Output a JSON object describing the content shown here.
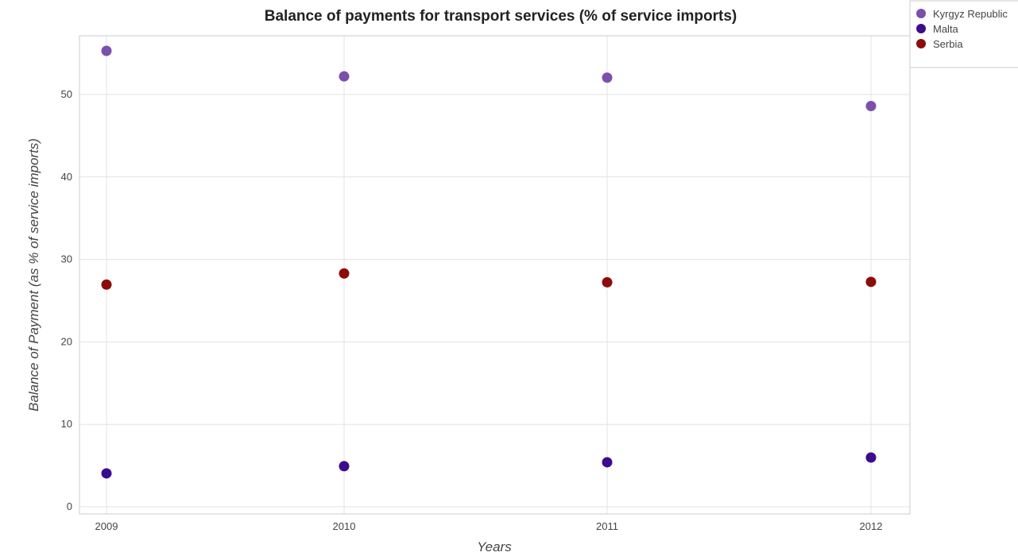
{
  "chart_data": {
    "type": "scatter",
    "title": "Balance of payments for transport services (% of service imports)",
    "xlabel": "Years",
    "ylabel": "Balance of Payment (as % of service imports)",
    "categories": [
      "2009",
      "2010",
      "2011",
      "2012"
    ],
    "yticks": [
      "0",
      "10",
      "20",
      "30",
      "40",
      "50"
    ],
    "ylim": [
      0,
      58
    ],
    "grid": true,
    "legend_position": "top-right",
    "series": [
      {
        "name": "Kyrgyz Republic",
        "color": "#7b4fad",
        "values": [
          55.3,
          52.2,
          52.05,
          48.6
        ]
      },
      {
        "name": "Malta",
        "color": "#3b0c8c",
        "values": [
          4.05,
          4.92,
          5.4,
          5.97
        ]
      },
      {
        "name": "Serbia",
        "color": "#8c0c0c",
        "values": [
          26.95,
          28.3,
          27.23,
          27.28
        ]
      }
    ]
  }
}
